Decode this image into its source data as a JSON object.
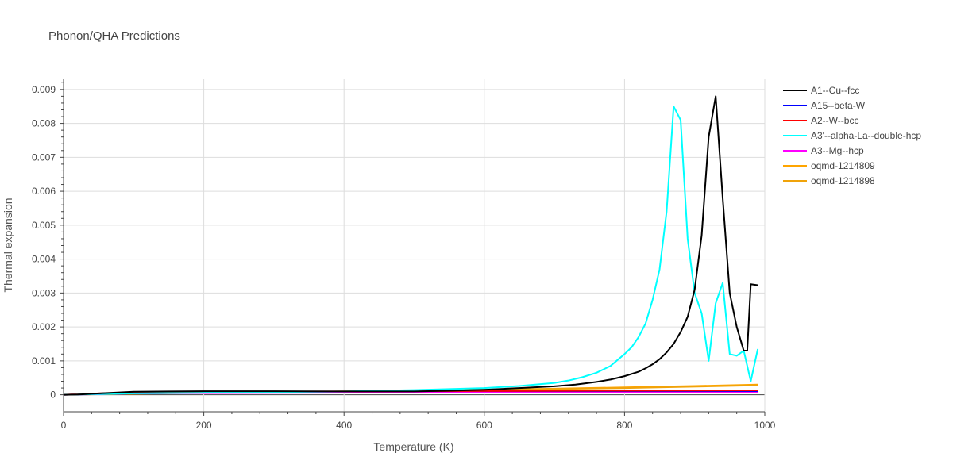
{
  "chart_data": {
    "type": "line",
    "title": "Phonon/QHA Predictions",
    "xlabel": "Temperature (K)",
    "ylabel": "Thermal expansion",
    "xlim": [
      0,
      1000
    ],
    "ylim": [
      -0.0005,
      0.0093
    ],
    "x_ticks": [
      0,
      200,
      400,
      600,
      800,
      1000
    ],
    "x_tick_labels": [
      "0",
      "200",
      "400",
      "600",
      "800",
      "1000"
    ],
    "y_ticks": [
      0,
      0.001,
      0.002,
      0.003,
      0.004,
      0.005,
      0.006,
      0.007,
      0.008,
      0.009
    ],
    "y_tick_labels": [
      "0",
      "0.001",
      "0.002",
      "0.003",
      "0.004",
      "0.005",
      "0.006",
      "0.007",
      "0.008",
      "0.009"
    ],
    "grid": true,
    "legend_position": "right",
    "series": [
      {
        "name": "A1--Cu--fcc",
        "color": "#000000",
        "x": [
          0,
          20,
          40,
          60,
          80,
          100,
          150,
          200,
          300,
          400,
          500,
          550,
          600,
          650,
          700,
          730,
          760,
          780,
          800,
          820,
          830,
          840,
          850,
          860,
          870,
          880,
          890,
          900,
          910,
          920,
          930,
          940,
          950,
          960,
          970,
          975,
          980,
          990
        ],
        "y": [
          0,
          5e-06,
          3e-05,
          5e-05,
          7e-05,
          9e-05,
          0.0001,
          0.000105,
          0.000105,
          0.0001,
          0.0001,
          0.00012,
          0.00015,
          0.0002,
          0.00025,
          0.0003,
          0.00038,
          0.00045,
          0.00055,
          0.00068,
          0.00078,
          0.0009,
          0.00105,
          0.00125,
          0.0015,
          0.00185,
          0.0023,
          0.0031,
          0.0047,
          0.0076,
          0.0088,
          0.0058,
          0.003,
          0.002,
          0.0013,
          0.0013,
          0.00326,
          0.00323
        ]
      },
      {
        "name": "A15--beta-W",
        "color": "#0000ff",
        "x": [
          0,
          100,
          200,
          400,
          600,
          800,
          990
        ],
        "y": [
          0,
          4e-05,
          6e-05,
          7e-05,
          8e-05,
          9e-05,
          0.0001
        ]
      },
      {
        "name": "A2--W--bcc",
        "color": "#ff0000",
        "x": [
          0,
          50,
          100,
          200,
          400,
          600,
          800,
          990
        ],
        "y": [
          0,
          4e-05,
          7e-05,
          9e-05,
          0.0001,
          0.00011,
          0.00012,
          0.00013
        ]
      },
      {
        "name": "A3'--alpha-La--double-hcp",
        "color": "#00ffff",
        "x": [
          0,
          50,
          100,
          200,
          300,
          400,
          500,
          600,
          650,
          700,
          720,
          740,
          760,
          780,
          800,
          810,
          820,
          830,
          840,
          850,
          860,
          870,
          880,
          890,
          900,
          910,
          920,
          930,
          940,
          950,
          960,
          970,
          980,
          990
        ],
        "y": [
          0,
          2e-05,
          4e-05,
          6e-05,
          8e-05,
          0.0001,
          0.00014,
          0.0002,
          0.00026,
          0.00035,
          0.00042,
          0.00052,
          0.00065,
          0.00085,
          0.0012,
          0.0014,
          0.0017,
          0.0021,
          0.0028,
          0.0037,
          0.0054,
          0.0085,
          0.0081,
          0.0046,
          0.003,
          0.0024,
          0.001,
          0.0027,
          0.0033,
          0.0012,
          0.00115,
          0.0013,
          0.0004,
          0.00135
        ]
      },
      {
        "name": "A3--Mg--hcp",
        "color": "#ff00ff",
        "x": [
          0,
          100,
          200,
          400,
          600,
          800,
          990
        ],
        "y": [
          0,
          4e-05,
          5e-05,
          6e-05,
          6e-05,
          6e-05,
          6e-05
        ]
      },
      {
        "name": "oqmd-1214809",
        "color": "#ffa500",
        "x": [
          0,
          100,
          200,
          400,
          600,
          700,
          800,
          900,
          990
        ],
        "y": [
          0,
          4e-05,
          6e-05,
          0.0001,
          0.00015,
          0.00018,
          0.00022,
          0.00026,
          0.0003
        ]
      },
      {
        "name": "oqmd-1214898",
        "color": "#f0a30a",
        "x": [
          0,
          100,
          200,
          400,
          600,
          800,
          990
        ],
        "y": [
          0,
          3e-05,
          6e-05,
          0.0001,
          0.00014,
          0.0002,
          0.00028
        ]
      }
    ]
  }
}
